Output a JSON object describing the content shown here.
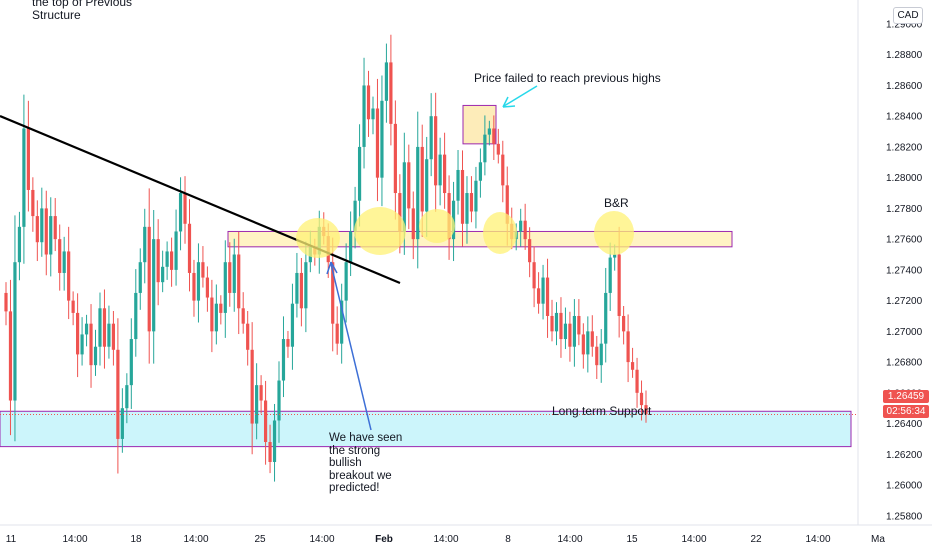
{
  "colors": {
    "up": "#26a69a",
    "down": "#ef5350",
    "trendline": "#000000",
    "support_zone_fill": "#ccf5fb",
    "support_zone_border": "#9c27b0",
    "resistance_zone_fill": "#fff3c4",
    "resistance_zone_border": "#9c27b0",
    "highlight_circle": "#fff176",
    "arrow_blue": "#3d6fd6",
    "arrow_cyan": "#27d8ea",
    "price_tag_bg": "#ef5350",
    "grid": "#f0f3fa"
  },
  "currency_badge": "CAD",
  "annotations": {
    "top_left": [
      "the top of Previous",
      "Structure"
    ],
    "price_failed": "Price failed to reach previous highs",
    "br": "B&R",
    "long_term_support": "Long term Support",
    "breakout_note": [
      "We have seen",
      "the strong",
      "bullish",
      "breakout we",
      "predicted!"
    ]
  },
  "price_tags": {
    "last_price": "1.26459",
    "countdown": "02:56:34"
  },
  "chart_data": {
    "type": "candlestick",
    "y_axis": {
      "range": [
        1.2574,
        1.2913
      ],
      "ticks": [
        "1.29000",
        "1.28800",
        "1.28600",
        "1.28400",
        "1.28200",
        "1.28000",
        "1.27800",
        "1.27600",
        "1.27400",
        "1.27200",
        "1.27000",
        "1.26800",
        "1.26600",
        "1.26400",
        "1.26200",
        "1.26000",
        "1.25800"
      ],
      "tick_values": [
        1.29,
        1.288,
        1.286,
        1.284,
        1.282,
        1.28,
        1.278,
        1.276,
        1.274,
        1.272,
        1.27,
        1.268,
        1.266,
        1.264,
        1.262,
        1.26,
        1.258
      ]
    },
    "x_axis": {
      "ticks": [
        "11",
        "14:00",
        "18",
        "14:00",
        "25",
        "14:00",
        "Feb",
        "14:00",
        "8",
        "14:00",
        "15",
        "14:00",
        "22",
        "14:00",
        "Ma"
      ],
      "bold_ticks": [
        "Feb"
      ]
    },
    "last_price": 1.26459,
    "support_zone": [
      1.2625,
      1.2648
    ],
    "resistance_zone": [
      1.2755,
      1.2765
    ],
    "failed_highs_box": [
      1.2822,
      1.2847
    ],
    "trendline": [
      [
        1.2836,
        "Jan 8"
      ],
      [
        1.2728,
        "Feb 1"
      ]
    ],
    "closes": [
      1.2713,
      1.2655,
      1.2745,
      1.2768,
      1.2832,
      1.2792,
      1.2775,
      1.2758,
      1.278,
      1.275,
      1.2775,
      1.276,
      1.2738,
      1.2752,
      1.272,
      1.2712,
      1.2685,
      1.2698,
      1.2705,
      1.2678,
      1.269,
      1.2715,
      1.269,
      1.2705,
      1.2688,
      1.263,
      1.265,
      1.2665,
      1.2695,
      1.2725,
      1.2745,
      1.2768,
      1.27,
      1.276,
      1.2732,
      1.2742,
      1.2752,
      1.274,
      1.2765,
      1.279,
      1.277,
      1.2738,
      1.272,
      1.2745,
      1.2735,
      1.2722,
      1.27,
      1.2718,
      1.2712,
      1.2745,
      1.2725,
      1.275,
      1.2715,
      1.2705,
      1.2688,
      1.264,
      1.2665,
      1.2655,
      1.2628,
      1.2615,
      1.2642,
      1.2668,
      1.2695,
      1.269,
      1.2718,
      1.2738,
      1.2715,
      1.2745,
      1.2755,
      1.275,
      1.2768,
      1.2762,
      1.2745,
      1.2705,
      1.2692,
      1.272,
      1.2745,
      1.2765,
      1.2785,
      1.282,
      1.286,
      1.2838,
      1.2845,
      1.28,
      1.285,
      1.2875,
      1.2835,
      1.279,
      1.2765,
      1.281,
      1.278,
      1.276,
      1.282,
      1.2778,
      1.2812,
      1.284,
      1.2795,
      1.2815,
      1.279,
      1.276,
      1.2785,
      1.2805,
      1.277,
      1.279,
      1.2778,
      1.2798,
      1.281,
      1.2828,
      1.2832,
      1.2822,
      1.2815,
      1.2795,
      1.277,
      1.276,
      1.2765,
      1.2772,
      1.276,
      1.2745,
      1.2728,
      1.2718,
      1.2735,
      1.271,
      1.27,
      1.2712,
      1.2695,
      1.2705,
      1.269,
      1.271,
      1.2698,
      1.2685,
      1.27,
      1.269,
      1.2678,
      1.2692,
      1.2725,
      1.2748,
      1.275,
      1.271,
      1.27,
      1.268,
      1.2675,
      1.266,
      1.2652,
      1.2646
    ],
    "series": [
      {
        "name": "",
        "values_field": "closes"
      }
    ]
  }
}
